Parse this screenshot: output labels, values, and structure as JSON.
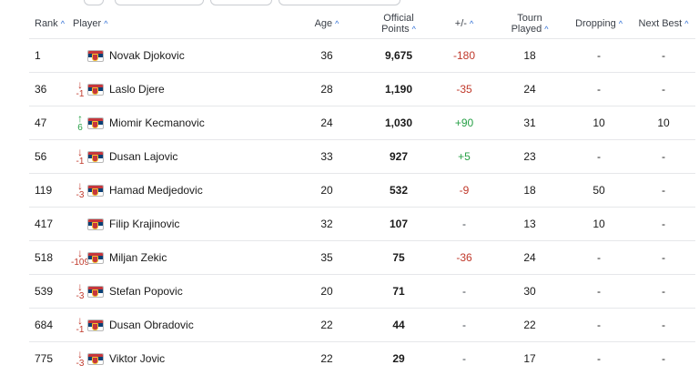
{
  "colors": {
    "accent": "#2b6cd4",
    "negative": "#c0392b",
    "positive": "#27a046",
    "flag_red": "#c6363c",
    "flag_blue": "#0c4076"
  },
  "headers": {
    "rank": "Rank",
    "player": "Player",
    "age": "Age",
    "points_line1": "Official",
    "points_line2": "Points",
    "change": "+/-",
    "played_line1": "Tourn",
    "played_line2": "Played",
    "dropping": "Dropping",
    "next_best": "Next Best",
    "sort_icon": "^"
  },
  "rows": [
    {
      "rank": "1",
      "move_dir": "",
      "move": "",
      "flag": "serbia-flag-icon",
      "name": "Novak Djokovic",
      "age": "36",
      "points": "9,675",
      "change": "-180",
      "change_type": "neg",
      "played": "18",
      "dropping": "-",
      "next_best": "-"
    },
    {
      "rank": "36",
      "move_dir": "down",
      "move": "-1",
      "flag": "serbia-flag-icon",
      "name": "Laslo Djere",
      "age": "28",
      "points": "1,190",
      "change": "-35",
      "change_type": "neg",
      "played": "24",
      "dropping": "-",
      "next_best": "-"
    },
    {
      "rank": "47",
      "move_dir": "up",
      "move": "6",
      "flag": "serbia-flag-icon",
      "name": "Miomir Kecmanovic",
      "age": "24",
      "points": "1,030",
      "change": "+90",
      "change_type": "pos",
      "played": "31",
      "dropping": "10",
      "next_best": "10"
    },
    {
      "rank": "56",
      "move_dir": "down",
      "move": "-1",
      "flag": "serbia-flag-icon",
      "name": "Dusan Lajovic",
      "age": "33",
      "points": "927",
      "change": "+5",
      "change_type": "pos",
      "played": "23",
      "dropping": "-",
      "next_best": "-"
    },
    {
      "rank": "119",
      "move_dir": "down",
      "move": "-3",
      "flag": "serbia-flag-icon",
      "name": "Hamad Medjedovic",
      "age": "20",
      "points": "532",
      "change": "-9",
      "change_type": "neg",
      "played": "18",
      "dropping": "50",
      "next_best": "-"
    },
    {
      "rank": "417",
      "move_dir": "",
      "move": "",
      "flag": "serbia-flag-icon",
      "name": "Filip Krajinovic",
      "age": "32",
      "points": "107",
      "change": "-",
      "change_type": "none",
      "played": "13",
      "dropping": "10",
      "next_best": "-"
    },
    {
      "rank": "518",
      "move_dir": "down",
      "move": "-109",
      "flag": "serbia-flag-icon",
      "name": "Miljan Zekic",
      "age": "35",
      "points": "75",
      "change": "-36",
      "change_type": "neg",
      "played": "24",
      "dropping": "-",
      "next_best": "-"
    },
    {
      "rank": "539",
      "move_dir": "down",
      "move": "-3",
      "flag": "serbia-flag-icon",
      "name": "Stefan Popovic",
      "age": "20",
      "points": "71",
      "change": "-",
      "change_type": "none",
      "played": "30",
      "dropping": "-",
      "next_best": "-"
    },
    {
      "rank": "684",
      "move_dir": "down",
      "move": "-1",
      "flag": "serbia-flag-icon",
      "name": "Dusan Obradovic",
      "age": "22",
      "points": "44",
      "change": "-",
      "change_type": "none",
      "played": "22",
      "dropping": "-",
      "next_best": "-"
    },
    {
      "rank": "775",
      "move_dir": "down",
      "move": "-3",
      "flag": "serbia-flag-icon",
      "name": "Viktor Jovic",
      "age": "22",
      "points": "29",
      "change": "-",
      "change_type": "none",
      "played": "17",
      "dropping": "-",
      "next_best": "-"
    }
  ]
}
